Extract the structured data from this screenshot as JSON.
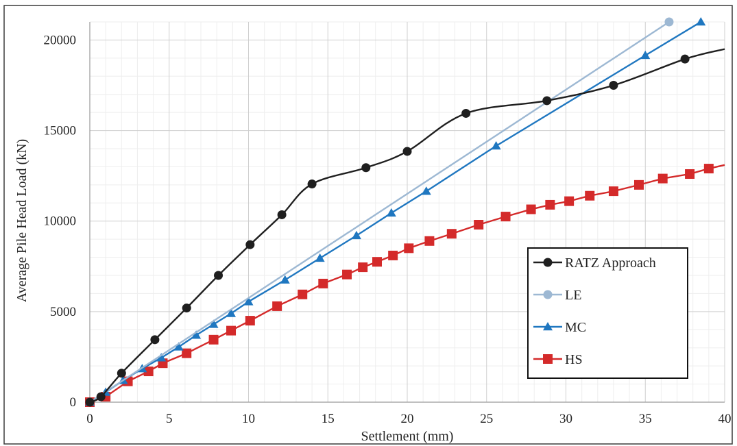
{
  "chart_data": {
    "type": "line",
    "title": "",
    "xlabel": "Settlement (mm)",
    "ylabel": "Average Pile Head Load (kN)",
    "xlim": [
      0,
      40
    ],
    "ylim": [
      0,
      21000
    ],
    "xticks": [
      0,
      5,
      10,
      15,
      20,
      25,
      30,
      35,
      40
    ],
    "yticks": [
      0,
      5000,
      10000,
      15000,
      20000
    ],
    "grid": true,
    "legend_position": "lower-right",
    "series": [
      {
        "name": "RATZ Approach",
        "color": "#1f1f1f",
        "marker": "circle",
        "smooth": true,
        "points": [
          [
            0,
            0
          ],
          [
            0.7,
            300
          ],
          [
            2,
            1600
          ],
          [
            4.1,
            3450
          ],
          [
            6.1,
            5200
          ],
          [
            8.1,
            7000
          ],
          [
            10.1,
            8700
          ],
          [
            12.1,
            10350
          ],
          [
            14,
            12050
          ],
          [
            17.4,
            12950
          ],
          [
            20,
            13850
          ],
          [
            23.7,
            15950
          ],
          [
            28.8,
            16650
          ],
          [
            33,
            17500
          ],
          [
            37.5,
            18950
          ],
          [
            40,
            19500
          ]
        ]
      },
      {
        "name": "LE",
        "color": "#9db8d3",
        "marker": "circle",
        "smooth": false,
        "points": [
          [
            0,
            0
          ],
          [
            36.5,
            21000
          ]
        ]
      },
      {
        "name": "MC",
        "color": "#1f77c0",
        "marker": "triangle",
        "smooth": false,
        "points": [
          [
            0,
            0
          ],
          [
            1,
            550
          ],
          [
            2.1,
            1200
          ],
          [
            3.3,
            1850
          ],
          [
            4.5,
            2450
          ],
          [
            5.6,
            3050
          ],
          [
            6.7,
            3700
          ],
          [
            7.8,
            4300
          ],
          [
            8.9,
            4900
          ],
          [
            10,
            5550
          ],
          [
            12.3,
            6750
          ],
          [
            14.5,
            7950
          ],
          [
            16.8,
            9200
          ],
          [
            19,
            10450
          ],
          [
            21.2,
            11650
          ],
          [
            25.6,
            14150
          ],
          [
            35,
            19150
          ],
          [
            38.5,
            21000
          ]
        ]
      },
      {
        "name": "HS",
        "color": "#d42a2a",
        "marker": "square",
        "smooth": false,
        "points": [
          [
            0,
            0
          ],
          [
            1,
            300
          ],
          [
            2.4,
            1150
          ],
          [
            3.7,
            1700
          ],
          [
            4.6,
            2150
          ],
          [
            6.1,
            2700
          ],
          [
            7.8,
            3450
          ],
          [
            8.9,
            3950
          ],
          [
            10.1,
            4500
          ],
          [
            11.8,
            5300
          ],
          [
            13.4,
            5950
          ],
          [
            14.7,
            6550
          ],
          [
            16.2,
            7050
          ],
          [
            17.2,
            7450
          ],
          [
            18.1,
            7750
          ],
          [
            19.1,
            8100
          ],
          [
            20.1,
            8500
          ],
          [
            21.4,
            8900
          ],
          [
            22.8,
            9300
          ],
          [
            24.5,
            9800
          ],
          [
            26.2,
            10250
          ],
          [
            27.8,
            10650
          ],
          [
            29,
            10900
          ],
          [
            30.2,
            11100
          ],
          [
            31.5,
            11400
          ],
          [
            33,
            11650
          ],
          [
            34.6,
            12000
          ],
          [
            36.1,
            12350
          ],
          [
            37.8,
            12600
          ],
          [
            39,
            12900
          ],
          [
            40,
            13100
          ]
        ]
      }
    ]
  }
}
